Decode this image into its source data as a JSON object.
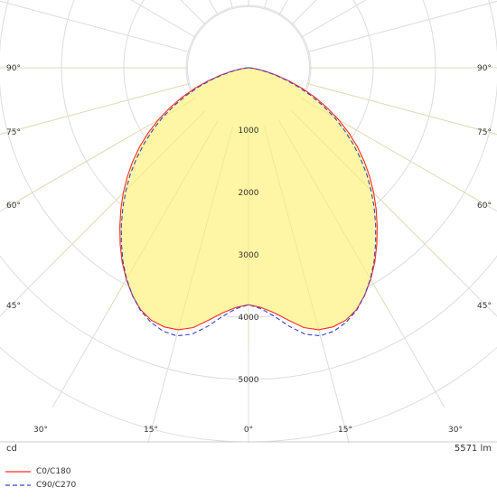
{
  "chart_data": {
    "type": "polar",
    "title": "",
    "unit_label": "cd",
    "flux_label": "5571 lm",
    "radial_ticks": [
      "1000",
      "2000",
      "3000",
      "4000",
      "5000"
    ],
    "radial_tick_values": [
      1000,
      2000,
      3000,
      4000,
      5000
    ],
    "rmax": 6000,
    "angle_labels_side": [
      "90°",
      "75°",
      "60°",
      "45°"
    ],
    "angle_labels_bottom": [
      "30°",
      "15°",
      "0°",
      "15°",
      "30°"
    ],
    "colors": {
      "c0": "#ff2a2a",
      "c90": "#3344cc",
      "fill": "#fff5a0",
      "grid": "#dddddd"
    },
    "series": [
      {
        "name": "C0/C180",
        "style": "solid",
        "angles_deg": [
          0,
          3,
          6,
          9,
          12,
          15,
          18,
          21,
          24,
          27,
          30,
          33,
          36,
          39,
          42,
          45,
          48,
          51,
          54,
          57,
          60,
          63,
          66,
          69,
          72,
          75,
          78,
          81,
          84,
          87,
          90
        ],
        "values": [
          3800,
          3850,
          3950,
          4100,
          4260,
          4350,
          4370,
          4340,
          4250,
          4100,
          3920,
          3720,
          3500,
          3280,
          3060,
          2840,
          2620,
          2390,
          2160,
          1920,
          1670,
          1420,
          1170,
          920,
          680,
          470,
          290,
          150,
          60,
          15,
          0
        ]
      },
      {
        "name": "C90/C270",
        "style": "dashed",
        "angles_deg": [
          0,
          3,
          6,
          9,
          12,
          15,
          18,
          21,
          24,
          27,
          30,
          33,
          36,
          39,
          42,
          45,
          48,
          51,
          54,
          57,
          60,
          63,
          66,
          69,
          72,
          75,
          78,
          81,
          84,
          87,
          90
        ],
        "values": [
          3800,
          3870,
          4010,
          4200,
          4370,
          4450,
          4440,
          4370,
          4260,
          4100,
          3910,
          3700,
          3470,
          3240,
          3010,
          2780,
          2550,
          2310,
          2070,
          1830,
          1590,
          1340,
          1100,
          860,
          630,
          430,
          260,
          130,
          50,
          12,
          0
        ]
      }
    ]
  }
}
